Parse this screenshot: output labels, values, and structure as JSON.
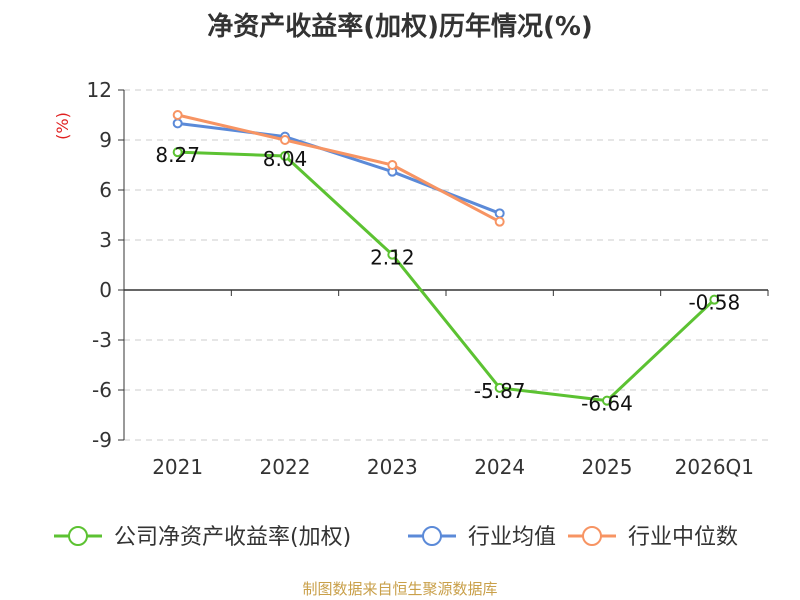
{
  "title": "净资产收益率(加权)历年情况(%)",
  "source": "制图数据来自恒生聚源数据库",
  "colors": {
    "company": "#5cc232",
    "industry_avg": "#5b8ad8",
    "industry_median": "#f79463",
    "unit": "#e02020"
  },
  "chart_data": {
    "type": "line",
    "ylabel": "(%)",
    "categories": [
      "2021",
      "2022",
      "2023",
      "2024",
      "2025",
      "2026Q1"
    ],
    "yticks": [
      "12",
      "9",
      "6",
      "3",
      "0",
      "-3",
      "-6",
      "-9"
    ],
    "ylim": [
      -9,
      12
    ],
    "grid": true,
    "legend": "bottom",
    "series": [
      {
        "name": "公司净资产收益率(加权)",
        "values": [
          8.27,
          8.04,
          2.12,
          -5.87,
          -6.64,
          -0.58
        ],
        "labels": [
          "8.27",
          "8.04",
          "2.12",
          "-5.87",
          "-6.64",
          "-0.58"
        ]
      },
      {
        "name": "行业均值",
        "values": [
          10.0,
          9.2,
          7.1,
          4.6,
          null,
          null
        ]
      },
      {
        "name": "行业中位数",
        "values": [
          10.5,
          9.0,
          7.5,
          4.1,
          null,
          null
        ]
      }
    ]
  }
}
